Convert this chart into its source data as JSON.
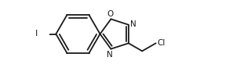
{
  "bg_color": "#ffffff",
  "line_color": "#1a1a1a",
  "line_width": 1.3,
  "font_size": 7.5,
  "figsize": [
    3.06,
    0.87
  ],
  "dpi": 100,
  "atoms": {
    "I": "I",
    "O": "O",
    "N": "N",
    "Cl": "Cl"
  }
}
